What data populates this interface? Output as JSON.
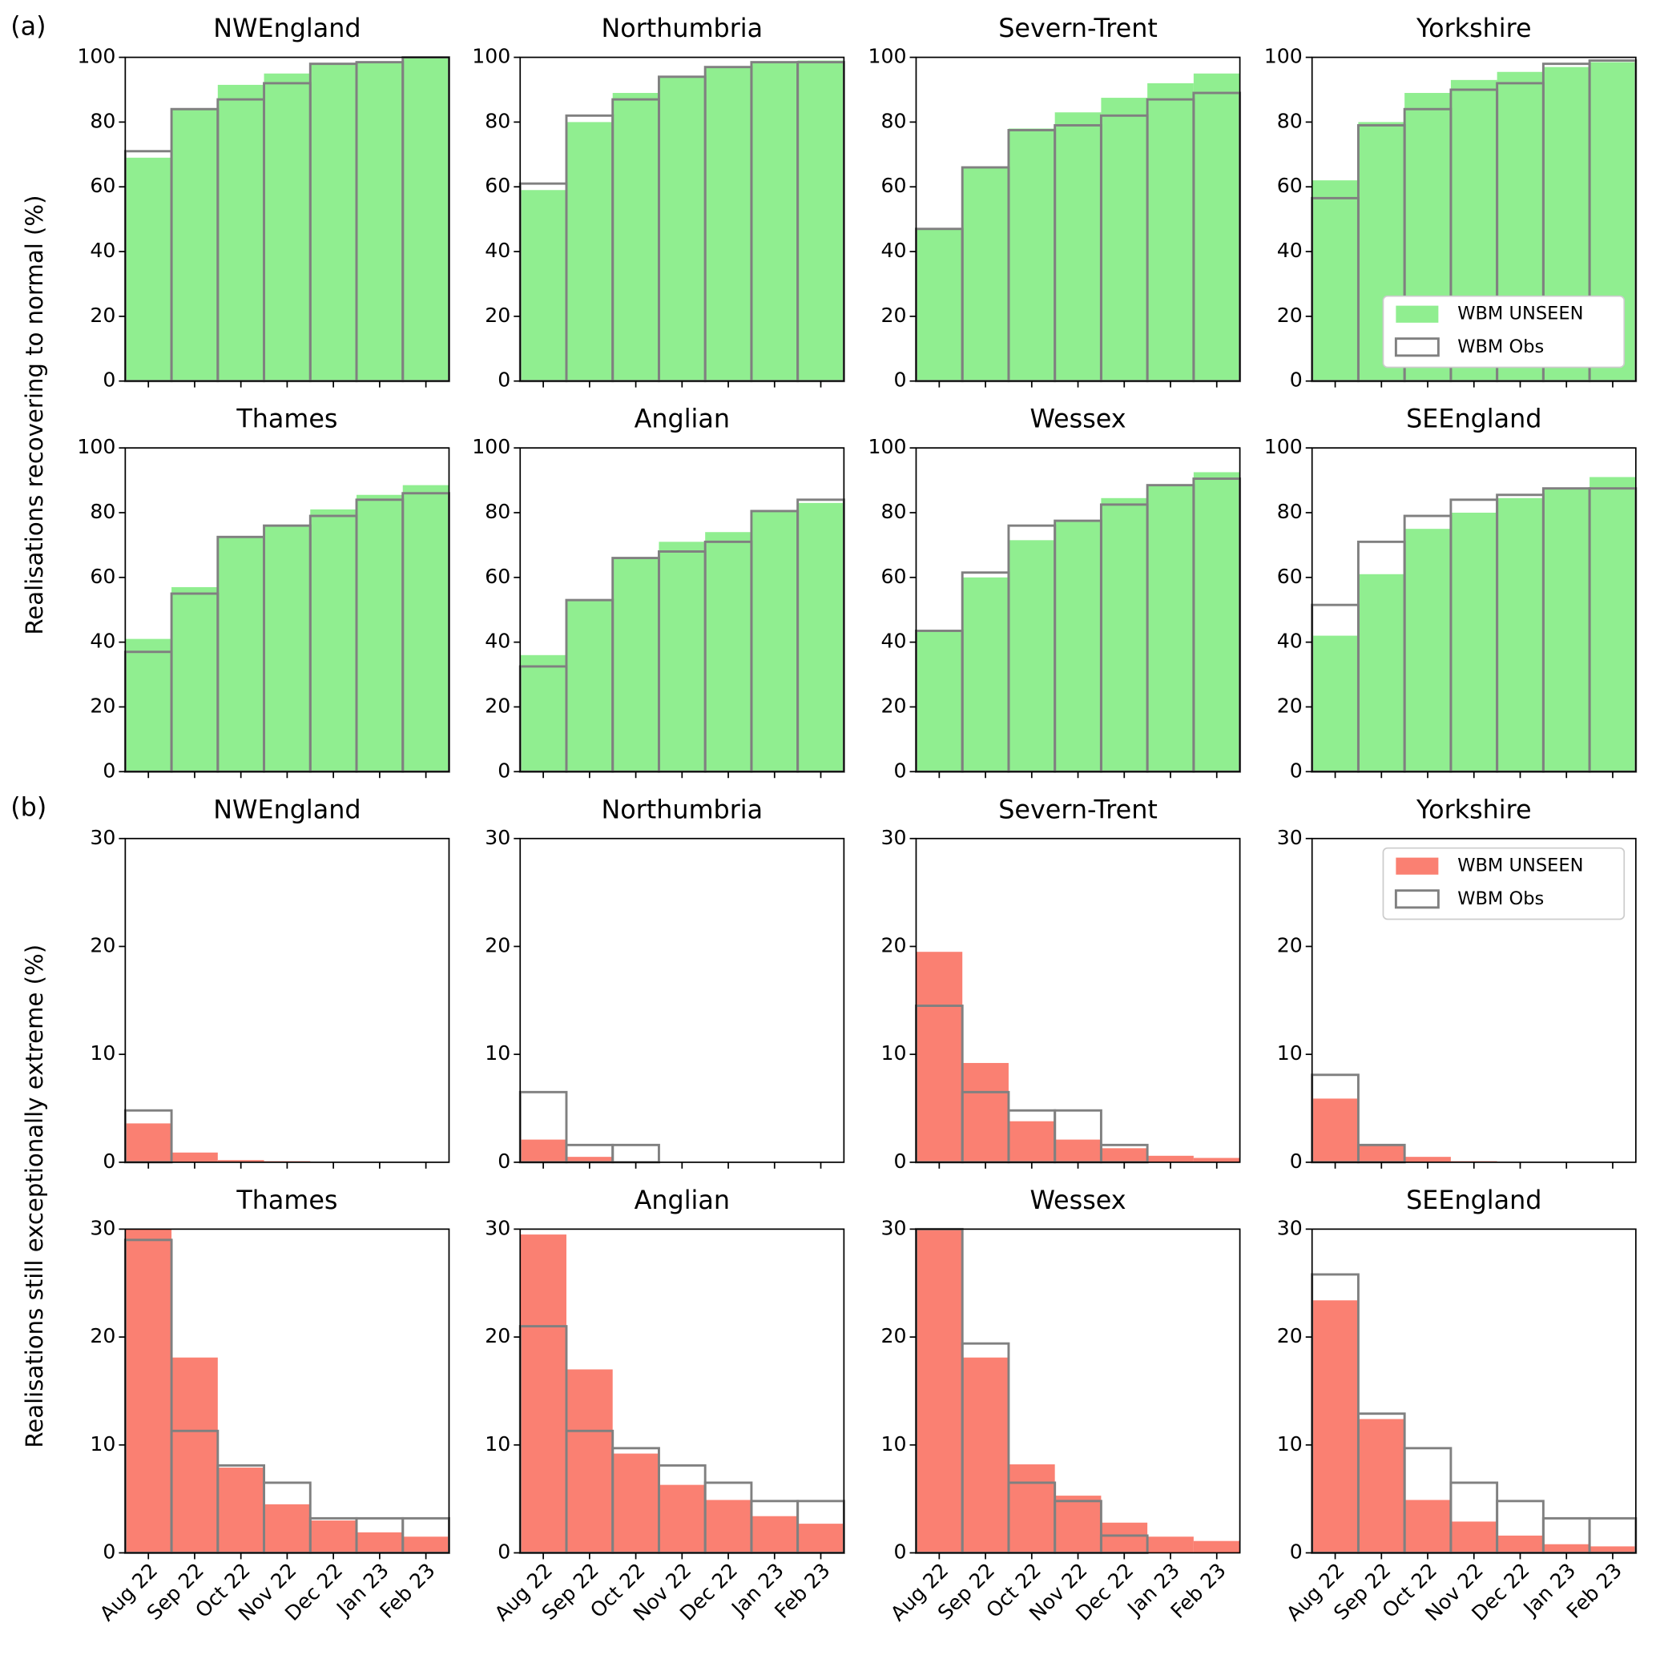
{
  "chart_data": [
    {
      "type": "bar",
      "title": "NWEngland",
      "panel_label": "(a)",
      "ylabel": "Realisations recovering to normal (%)",
      "categories": [
        null,
        null,
        null,
        null,
        null,
        null,
        null
      ],
      "ylim": [
        0,
        100
      ],
      "yticks": [
        0,
        20,
        40,
        60,
        80,
        100
      ],
      "series": [
        {
          "color": "#90ee90",
          "fill": true,
          "values": [
            69,
            84,
            91.5,
            95,
            98,
            98.5,
            100
          ]
        },
        {
          "color": "#808080",
          "fill": false,
          "values": [
            71,
            84,
            87,
            92,
            98,
            98.5,
            100
          ]
        }
      ]
    },
    {
      "type": "bar",
      "title": "Northumbria",
      "categories": [
        null,
        null,
        null,
        null,
        null,
        null,
        null
      ],
      "ylim": [
        0,
        100
      ],
      "yticks": [
        0,
        20,
        40,
        60,
        80,
        100
      ],
      "series": [
        {
          "color": "#90ee90",
          "fill": true,
          "values": [
            59,
            80,
            89,
            94,
            97,
            98.5,
            99
          ]
        },
        {
          "color": "#808080",
          "fill": false,
          "values": [
            61,
            82,
            87,
            94,
            97,
            98.5,
            98.5
          ]
        }
      ]
    },
    {
      "type": "bar",
      "title": "Severn-Trent",
      "categories": [
        null,
        null,
        null,
        null,
        null,
        null,
        null
      ],
      "ylim": [
        0,
        100
      ],
      "yticks": [
        0,
        20,
        40,
        60,
        80,
        100
      ],
      "series": [
        {
          "color": "#90ee90",
          "fill": true,
          "values": [
            47,
            66,
            78,
            83,
            87.5,
            92,
            95
          ]
        },
        {
          "color": "#808080",
          "fill": false,
          "values": [
            47,
            66,
            77.5,
            79,
            82,
            87,
            89
          ]
        }
      ]
    },
    {
      "type": "bar",
      "title": "Yorkshire",
      "categories": [
        null,
        null,
        null,
        null,
        null,
        null,
        null
      ],
      "ylim": [
        0,
        100
      ],
      "yticks": [
        0,
        20,
        40,
        60,
        80,
        100
      ],
      "legend": "lower right",
      "series": [
        {
          "name": "WBM UNSEEN",
          "color": "#90ee90",
          "fill": true,
          "values": [
            62,
            80,
            89,
            93,
            95.5,
            97,
            98.5
          ]
        },
        {
          "name": "WBM Obs",
          "color": "#808080",
          "fill": false,
          "values": [
            56.5,
            79,
            84,
            90,
            92,
            98,
            99
          ]
        }
      ]
    },
    {
      "type": "bar",
      "title": "Thames",
      "categories": [
        null,
        null,
        null,
        null,
        null,
        null,
        null
      ],
      "ylim": [
        0,
        100
      ],
      "yticks": [
        0,
        20,
        40,
        60,
        80,
        100
      ],
      "series": [
        {
          "color": "#90ee90",
          "fill": true,
          "values": [
            41,
            57,
            72.5,
            76,
            81,
            85.5,
            88.5
          ]
        },
        {
          "color": "#808080",
          "fill": false,
          "values": [
            37,
            55,
            72.5,
            76,
            79,
            84,
            86
          ]
        }
      ]
    },
    {
      "type": "bar",
      "title": "Anglian",
      "categories": [
        null,
        null,
        null,
        null,
        null,
        null,
        null
      ],
      "ylim": [
        0,
        100
      ],
      "yticks": [
        0,
        20,
        40,
        60,
        80,
        100
      ],
      "series": [
        {
          "color": "#90ee90",
          "fill": true,
          "values": [
            36,
            53,
            66,
            71,
            74,
            80.5,
            83
          ]
        },
        {
          "color": "#808080",
          "fill": false,
          "values": [
            32.5,
            53,
            66,
            68,
            71,
            80.5,
            84
          ]
        }
      ]
    },
    {
      "type": "bar",
      "title": "Wessex",
      "categories": [
        null,
        null,
        null,
        null,
        null,
        null,
        null
      ],
      "ylim": [
        0,
        100
      ],
      "yticks": [
        0,
        20,
        40,
        60,
        80,
        100
      ],
      "series": [
        {
          "color": "#90ee90",
          "fill": true,
          "values": [
            43.5,
            60,
            71.5,
            77.5,
            84.5,
            88.5,
            92.5
          ]
        },
        {
          "color": "#808080",
          "fill": false,
          "values": [
            43.5,
            61.5,
            76,
            77.5,
            82.5,
            88.5,
            90.5
          ]
        }
      ]
    },
    {
      "type": "bar",
      "title": "SEEngland",
      "categories": [
        null,
        null,
        null,
        null,
        null,
        null,
        null
      ],
      "ylim": [
        0,
        100
      ],
      "yticks": [
        0,
        20,
        40,
        60,
        80,
        100
      ],
      "series": [
        {
          "color": "#90ee90",
          "fill": true,
          "values": [
            42,
            61,
            75,
            80,
            84.5,
            87.5,
            91
          ]
        },
        {
          "color": "#808080",
          "fill": false,
          "values": [
            51.5,
            71,
            79,
            84,
            85.5,
            87.5,
            87.5
          ]
        }
      ]
    },
    {
      "type": "bar",
      "title": "NWEngland",
      "panel_label": "(b)",
      "ylabel": "Realisations still exceptionally extreme (%)",
      "categories": [
        null,
        null,
        null,
        null,
        null,
        null,
        null
      ],
      "ylim": [
        0,
        30
      ],
      "yticks": [
        0,
        10,
        20,
        30
      ],
      "series": [
        {
          "color": "#fa8072",
          "fill": true,
          "values": [
            3.6,
            0.9,
            0.2,
            0.1,
            0,
            0,
            0
          ]
        },
        {
          "color": "#808080",
          "fill": false,
          "values": [
            4.8,
            0,
            0,
            0,
            0,
            0,
            0
          ]
        }
      ]
    },
    {
      "type": "bar",
      "title": "Northumbria",
      "categories": [
        null,
        null,
        null,
        null,
        null,
        null,
        null
      ],
      "ylim": [
        0,
        30
      ],
      "yticks": [
        0,
        10,
        20,
        30
      ],
      "series": [
        {
          "color": "#fa8072",
          "fill": true,
          "values": [
            2.1,
            0.5,
            0,
            0,
            0,
            0,
            0
          ]
        },
        {
          "color": "#808080",
          "fill": false,
          "values": [
            6.5,
            1.6,
            1.6,
            0,
            0,
            0,
            0
          ]
        }
      ]
    },
    {
      "type": "bar",
      "title": "Severn-Trent",
      "categories": [
        null,
        null,
        null,
        null,
        null,
        null,
        null
      ],
      "ylim": [
        0,
        30
      ],
      "yticks": [
        0,
        10,
        20,
        30
      ],
      "series": [
        {
          "color": "#fa8072",
          "fill": true,
          "values": [
            19.5,
            9.2,
            3.8,
            2.1,
            1.3,
            0.6,
            0.4
          ]
        },
        {
          "color": "#808080",
          "fill": false,
          "values": [
            14.5,
            6.5,
            4.8,
            4.8,
            1.6,
            0,
            0
          ]
        }
      ]
    },
    {
      "type": "bar",
      "title": "Yorkshire",
      "categories": [
        null,
        null,
        null,
        null,
        null,
        null,
        null
      ],
      "ylim": [
        0,
        30
      ],
      "yticks": [
        0,
        10,
        20,
        30
      ],
      "legend": "upper right",
      "series": [
        {
          "name": "WBM UNSEEN",
          "color": "#fa8072",
          "fill": true,
          "values": [
            5.9,
            1.6,
            0.5,
            0.1,
            0,
            0,
            0
          ]
        },
        {
          "name": "WBM Obs",
          "color": "#808080",
          "fill": false,
          "values": [
            8.1,
            1.6,
            0,
            0,
            0,
            0,
            0
          ]
        }
      ]
    },
    {
      "type": "bar",
      "title": "Thames",
      "categories": [
        "Aug 22",
        "Sep 22",
        "Oct 22",
        "Nov 22",
        "Dec 22",
        "Jan 23",
        "Feb 23"
      ],
      "ylim": [
        0,
        30
      ],
      "yticks": [
        0,
        10,
        20,
        30
      ],
      "series": [
        {
          "color": "#fa8072",
          "fill": true,
          "values": [
            30,
            18.1,
            7.9,
            4.5,
            3,
            1.9,
            1.5
          ]
        },
        {
          "color": "#808080",
          "fill": false,
          "values": [
            29,
            11.3,
            8.1,
            6.5,
            3.2,
            3.2,
            3.2
          ]
        }
      ]
    },
    {
      "type": "bar",
      "title": "Anglian",
      "categories": [
        "Aug 22",
        "Sep 22",
        "Oct 22",
        "Nov 22",
        "Dec 22",
        "Jan 23",
        "Feb 23"
      ],
      "ylim": [
        0,
        30
      ],
      "yticks": [
        0,
        10,
        20,
        30
      ],
      "series": [
        {
          "color": "#fa8072",
          "fill": true,
          "values": [
            29.5,
            17,
            9.2,
            6.3,
            4.9,
            3.4,
            2.7
          ]
        },
        {
          "color": "#808080",
          "fill": false,
          "values": [
            21,
            11.3,
            9.7,
            8.1,
            6.5,
            4.8,
            4.8
          ]
        }
      ]
    },
    {
      "type": "bar",
      "title": "Wessex",
      "categories": [
        "Aug 22",
        "Sep 22",
        "Oct 22",
        "Nov 22",
        "Dec 22",
        "Jan 23",
        "Feb 23"
      ],
      "ylim": [
        0,
        30
      ],
      "yticks": [
        0,
        10,
        20,
        30
      ],
      "series": [
        {
          "color": "#fa8072",
          "fill": true,
          "values": [
            30,
            18.1,
            8.2,
            5.3,
            2.8,
            1.5,
            1.1
          ]
        },
        {
          "color": "#808080",
          "fill": false,
          "values": [
            30,
            19.4,
            6.5,
            4.8,
            1.6,
            0,
            0
          ]
        }
      ]
    },
    {
      "type": "bar",
      "title": "SEEngland",
      "categories": [
        "Aug 22",
        "Sep 22",
        "Oct 22",
        "Nov 22",
        "Dec 22",
        "Jan 23",
        "Feb 23"
      ],
      "ylim": [
        0,
        30
      ],
      "yticks": [
        0,
        10,
        20,
        30
      ],
      "series": [
        {
          "color": "#fa8072",
          "fill": true,
          "values": [
            23.4,
            12.4,
            4.9,
            2.9,
            1.6,
            0.8,
            0.6
          ]
        },
        {
          "color": "#808080",
          "fill": false,
          "values": [
            25.8,
            12.9,
            9.7,
            6.5,
            4.8,
            3.2,
            3.2
          ]
        }
      ]
    }
  ]
}
